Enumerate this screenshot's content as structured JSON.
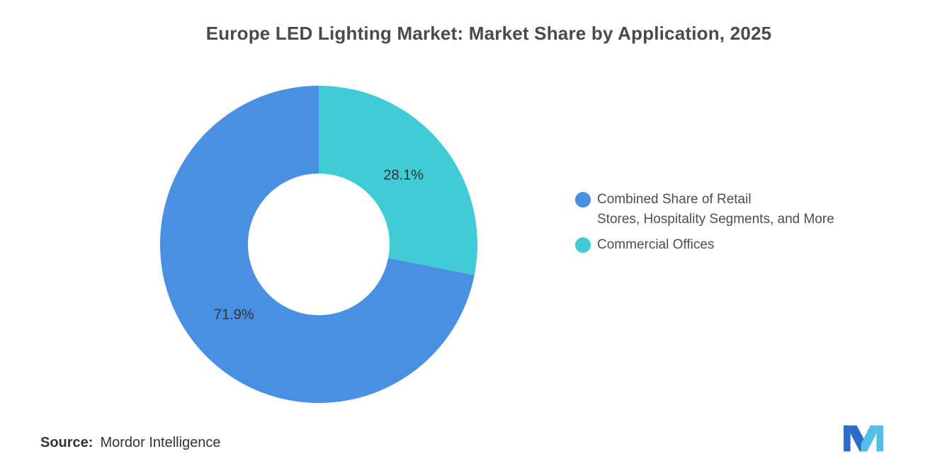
{
  "title": "Europe LED Lighting Market: Market Share by Application, 2025",
  "source": {
    "label": "Source:",
    "value": "Mordor Intelligence"
  },
  "icons": {
    "logo": "mordor-intelligence-logo"
  },
  "chart_data": {
    "type": "pie",
    "subtype": "donut",
    "title": "Europe LED Lighting Market: Market Share by Application, 2025",
    "start_angle_deg": 0,
    "direction": "clockwise",
    "slices": [
      {
        "label": "Commercial Offices",
        "value": 28.1,
        "display": "28.1%",
        "color": "#40CCD5"
      },
      {
        "label": "Combined Share of Retail Stores, Hospitality Segments, and More",
        "value": 71.9,
        "display": "71.9%",
        "color": "#4A90E2"
      }
    ],
    "legend_position": "right",
    "legend": [
      {
        "color": "#4A90E2",
        "lines": [
          "Combined Share of Retail",
          "Stores, Hospitality Segments, and More"
        ]
      },
      {
        "color": "#40CCD5",
        "lines": [
          "Commercial Offices"
        ]
      }
    ]
  }
}
